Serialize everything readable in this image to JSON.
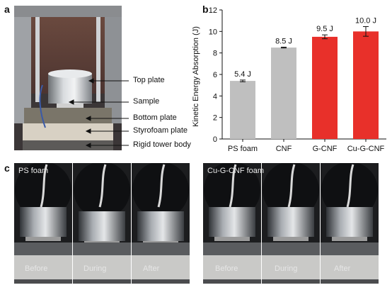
{
  "panels": {
    "a": "a",
    "b": "b",
    "c": "c"
  },
  "panel_a": {
    "callouts": [
      "Top plate",
      "Sample",
      "Bottom plate",
      "Styrofoam plate",
      "Rigid tower body"
    ]
  },
  "chart_data": {
    "type": "bar",
    "categories": [
      "PS foam",
      "CNF",
      "G-CNF",
      "Cu-G-CNF"
    ],
    "values": [
      5.4,
      8.5,
      9.5,
      10.0
    ],
    "errors": [
      0.08,
      0.04,
      0.18,
      0.45
    ],
    "data_labels": [
      "5.4 J",
      "8.5 J",
      "9.5 J",
      "10.0 J"
    ],
    "bar_colors": [
      "#bfbfbf",
      "#bfbfbf",
      "#e8302a",
      "#e8302a"
    ],
    "title": "",
    "xlabel": "",
    "ylabel": "Kinetic Energy Absorption (J)",
    "ylim": [
      0,
      12
    ],
    "yticks": [
      0,
      2,
      4,
      6,
      8,
      10,
      12
    ],
    "grid": false
  },
  "panel_c": {
    "groups": [
      {
        "label": "PS foam",
        "frames": [
          "Before",
          "During",
          "After"
        ]
      },
      {
        "label": "Cu-G-CNF foam",
        "frames": [
          "Before",
          "During",
          "After"
        ]
      }
    ]
  }
}
